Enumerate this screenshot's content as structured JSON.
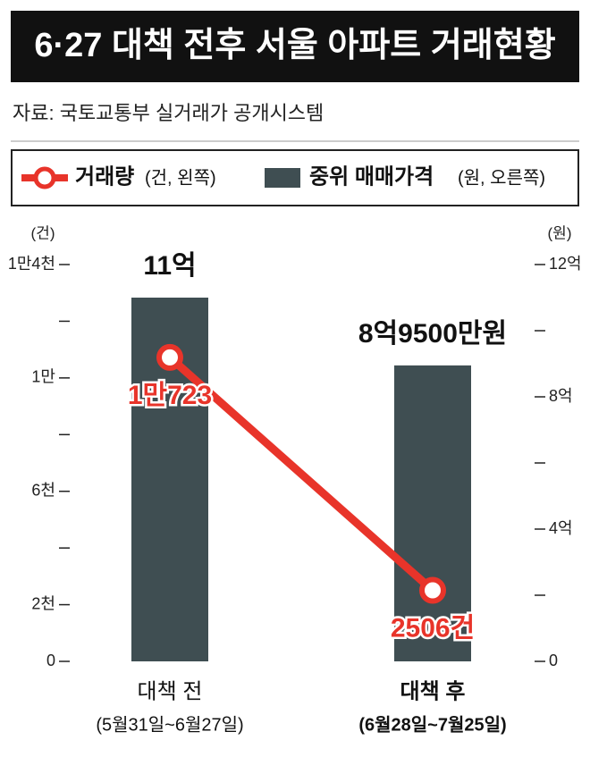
{
  "chart_data": {
    "type": "combo",
    "title": "6·27 대책 전후 서울 아파트 거래현황",
    "source": "자료: 국토교통부 실거래가 공개시스템",
    "categories": [
      "대책 전",
      "대책 후"
    ],
    "category_periods": [
      "(5월31일~6월27일)",
      "(6월28일~7월25일)"
    ],
    "series": [
      {
        "name": "중위 매매가격",
        "axis_note": "(원, 오른쪽)",
        "type": "bar",
        "axis": "y2",
        "color": "#3f4e52",
        "values": [
          11,
          8.95
        ],
        "value_labels": [
          "11억",
          "8억9500만원"
        ]
      },
      {
        "name": "거래량",
        "axis_note": "(건, 왼쪽)",
        "type": "line",
        "color": "#e8342a",
        "values": [
          10723,
          2506
        ],
        "value_labels": [
          "1만723",
          "2506건"
        ]
      }
    ],
    "ylabel": "(건)",
    "ylim": [
      0,
      14000
    ],
    "yticks": [
      0,
      {
        "value": 2000,
        "label": "2천"
      },
      {
        "value": 6000,
        "label": "6천"
      },
      {
        "value": 10000,
        "label": "1만"
      },
      {
        "value": 14000,
        "label": "1만4천"
      }
    ],
    "yminorticks": [
      4000,
      8000,
      12000
    ],
    "y2label": "(원)",
    "y2lim": [
      0,
      12
    ],
    "y2ticks": [
      0,
      {
        "value": 4,
        "label": "4억"
      },
      {
        "value": 8,
        "label": "8억"
      },
      {
        "value": 12,
        "label": "12억"
      }
    ],
    "y2minorticks": [
      2,
      6,
      10
    ]
  }
}
